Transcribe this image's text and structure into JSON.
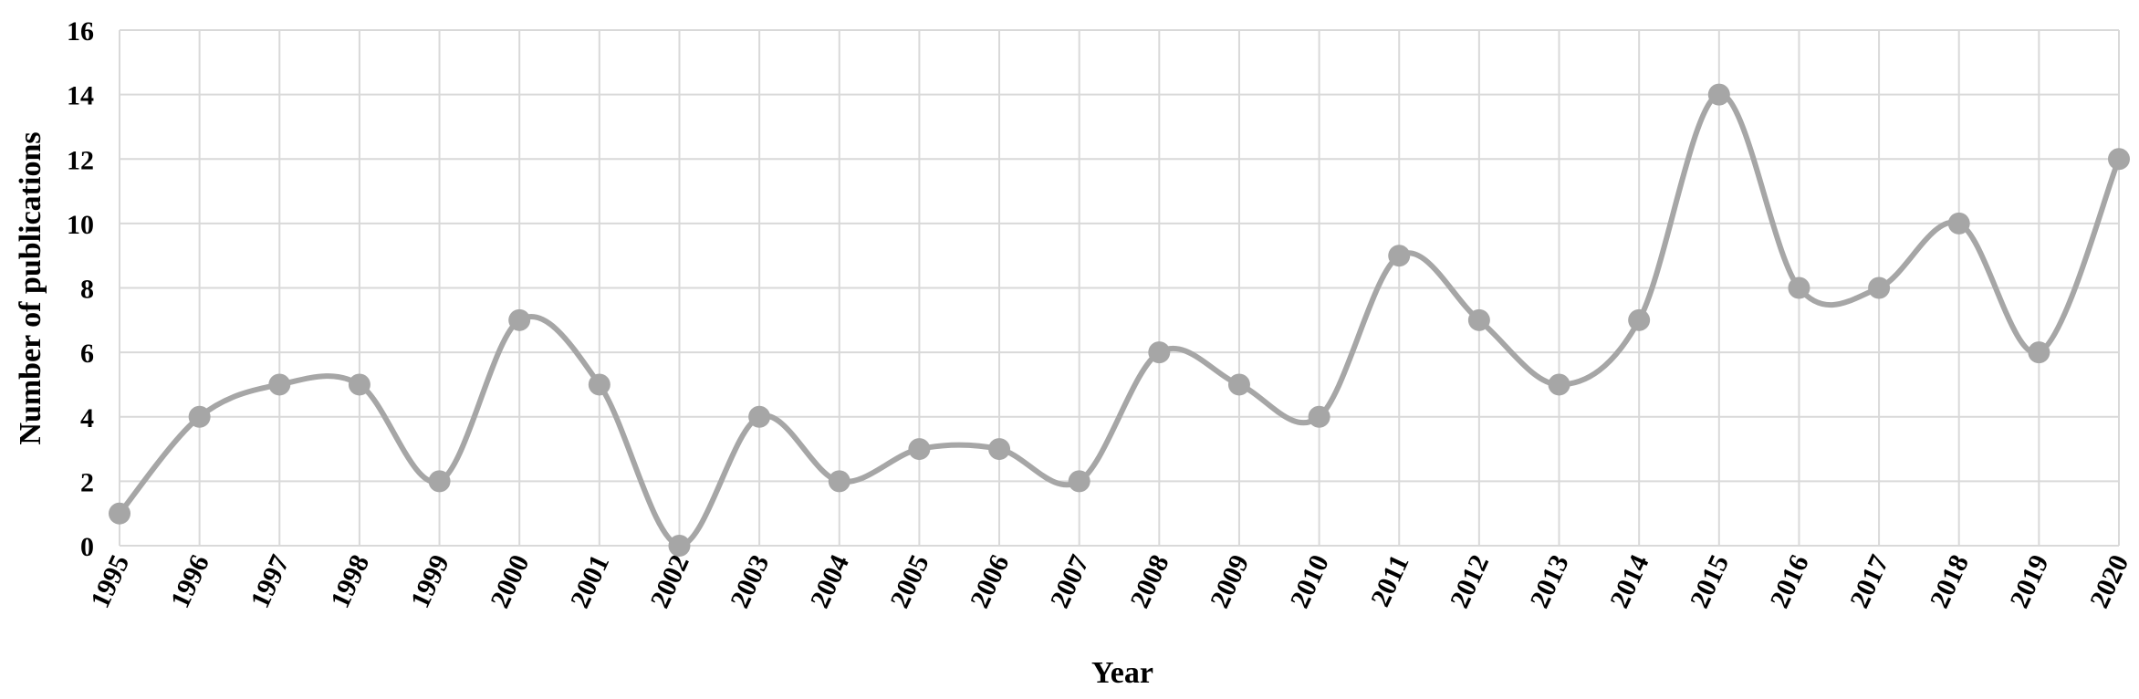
{
  "chart_data": {
    "type": "line",
    "smooth": true,
    "x": [
      "1995",
      "1996",
      "1997",
      "1998",
      "1999",
      "2000",
      "2001",
      "2002",
      "2003",
      "2004",
      "2005",
      "2006",
      "2007",
      "2008",
      "2009",
      "2010",
      "2011",
      "2012",
      "2013",
      "2014",
      "2015",
      "2016",
      "2017",
      "2018",
      "2019",
      "2020"
    ],
    "series": [
      {
        "values": [
          1,
          4,
          5,
          5,
          2,
          7,
          5,
          0,
          4,
          2,
          3,
          3,
          2,
          6,
          5,
          4,
          9,
          7,
          5,
          7,
          14,
          8,
          8,
          10,
          6,
          12
        ]
      }
    ],
    "xlabel": "Year",
    "ylabel": "Number of publications",
    "ylim": [
      0,
      16
    ],
    "yticks": [
      0,
      2,
      4,
      6,
      8,
      10,
      12,
      14,
      16
    ],
    "grid": true,
    "legend": "none",
    "colors": {
      "line": "#a6a6a6",
      "marker": "#a6a6a6",
      "grid": "#d9d9d9"
    }
  }
}
